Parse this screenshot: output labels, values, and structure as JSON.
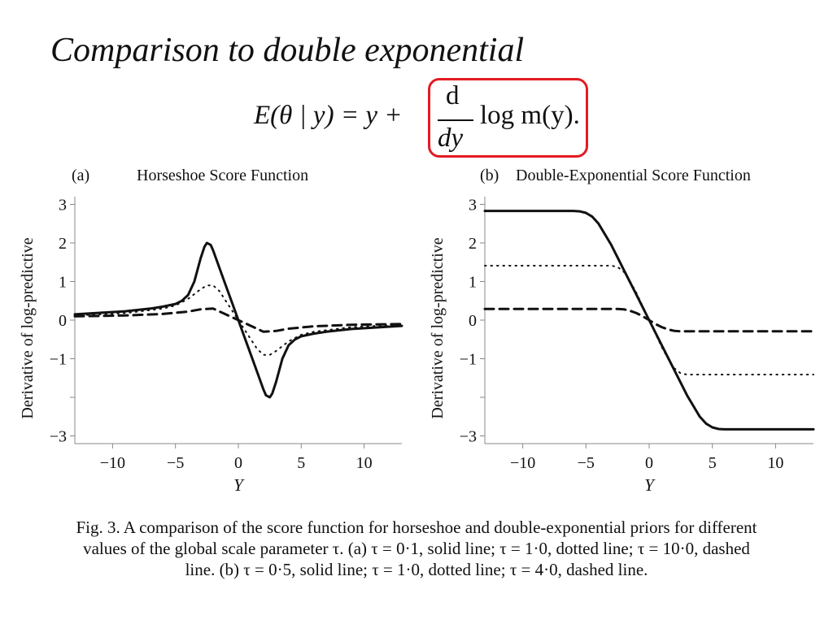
{
  "slide_title": "Comparison to double exponential",
  "equation": {
    "lhs": "E(θ | y) = y +",
    "numerator": "d",
    "denominator": "dy",
    "rhs": "log m(y).",
    "highlight_color": "#e31b23"
  },
  "caption": {
    "line1": "Fig.  3.  A comparison of the score function for horseshoe and double-exponential priors for different",
    "line2": "values of the global scale parameter τ. (a) τ = 0·1, solid line; τ = 1·0, dotted line; τ = 10·0, dashed",
    "line3": "line. (b) τ = 0·5, solid line; τ = 1·0, dotted line; τ = 4·0, dashed line."
  },
  "chart_data": [
    {
      "type": "line",
      "panel_label": "(a)",
      "title": "Horseshoe Score Function",
      "xlabel": "Y",
      "ylabel": "Derivative of log-predictive",
      "xlim": [
        -13,
        13
      ],
      "ylim": [
        -3.2,
        3.2
      ],
      "xticks": [
        -10,
        -5,
        0,
        5,
        10
      ],
      "xtick_labels": [
        "−10",
        "−5",
        "0",
        "5",
        "10"
      ],
      "yticks": [
        -3,
        -2,
        -1,
        0,
        1,
        2,
        3
      ],
      "ytick_labels": [
        "−3",
        "",
        "−1",
        "0",
        "1",
        "2",
        "3"
      ],
      "grid": false,
      "series": [
        {
          "style": "solid",
          "x": [
            -13,
            -11,
            -9,
            -7,
            -6,
            -5,
            -4.5,
            -4,
            -3.5,
            -3,
            -2.7,
            -2.5,
            -2.2,
            -2,
            -1.5,
            -1,
            -0.5,
            0,
            0.5,
            1,
            1.5,
            2,
            2.2,
            2.5,
            2.7,
            3,
            3.5,
            4,
            4.5,
            5,
            6,
            7,
            9,
            11,
            13
          ],
          "y": [
            0.15,
            0.19,
            0.23,
            0.3,
            0.35,
            0.42,
            0.5,
            0.65,
            1.0,
            1.6,
            1.9,
            2.0,
            1.95,
            1.8,
            1.35,
            0.9,
            0.45,
            0.0,
            -0.45,
            -0.9,
            -1.35,
            -1.8,
            -1.95,
            -2.0,
            -1.9,
            -1.6,
            -1.0,
            -0.65,
            -0.5,
            -0.42,
            -0.35,
            -0.3,
            -0.23,
            -0.19,
            -0.15
          ]
        },
        {
          "style": "dotted",
          "x": [
            -13,
            -9,
            -6,
            -5,
            -4,
            -3,
            -2.5,
            -2,
            -1.5,
            -1,
            -0.5,
            0,
            0.5,
            1,
            1.5,
            2,
            2.5,
            3,
            4,
            5,
            6,
            9,
            13
          ],
          "y": [
            0.12,
            0.18,
            0.3,
            0.38,
            0.55,
            0.8,
            0.9,
            0.9,
            0.75,
            0.5,
            0.25,
            0.0,
            -0.25,
            -0.5,
            -0.75,
            -0.9,
            -0.9,
            -0.8,
            -0.55,
            -0.38,
            -0.3,
            -0.18,
            -0.12
          ]
        },
        {
          "style": "dashed",
          "x": [
            -13,
            -9,
            -6,
            -4,
            -3,
            -2,
            -1,
            0,
            1,
            2,
            3,
            4,
            6,
            9,
            13
          ],
          "y": [
            0.1,
            0.12,
            0.16,
            0.22,
            0.28,
            0.3,
            0.15,
            0.0,
            -0.15,
            -0.3,
            -0.28,
            -0.22,
            -0.16,
            -0.12,
            -0.1
          ]
        }
      ]
    },
    {
      "type": "line",
      "panel_label": "(b)",
      "title": "Double-Exponential Score Function",
      "xlabel": "Y",
      "ylabel": "Derivative of log-predictive",
      "xlim": [
        -13,
        13
      ],
      "ylim": [
        -3.2,
        3.2
      ],
      "xticks": [
        -10,
        -5,
        0,
        5,
        10
      ],
      "xtick_labels": [
        "−10",
        "−5",
        "0",
        "5",
        "10"
      ],
      "yticks": [
        -3,
        -2,
        -1,
        0,
        1,
        2,
        3
      ],
      "ytick_labels": [
        "−3",
        "",
        "−1",
        "0",
        "1",
        "2",
        "3"
      ],
      "grid": false,
      "series": [
        {
          "style": "solid",
          "x": [
            -13,
            -6,
            -5.5,
            -5,
            -4.5,
            -4,
            -3,
            -2,
            -1,
            0,
            1,
            2,
            3,
            4,
            4.5,
            5,
            5.5,
            6,
            13
          ],
          "y": [
            2.83,
            2.83,
            2.82,
            2.78,
            2.68,
            2.5,
            1.95,
            1.3,
            0.65,
            0.0,
            -0.65,
            -1.3,
            -1.95,
            -2.5,
            -2.68,
            -2.78,
            -2.82,
            -2.83,
            -2.83
          ]
        },
        {
          "style": "dotted",
          "x": [
            -13,
            -3,
            -2.5,
            -2,
            -1.5,
            -1,
            -0.5,
            0,
            0.5,
            1,
            1.5,
            2,
            2.5,
            3,
            13
          ],
          "y": [
            1.41,
            1.41,
            1.38,
            1.25,
            1.0,
            0.7,
            0.35,
            0.0,
            -0.35,
            -0.7,
            -1.0,
            -1.25,
            -1.38,
            -1.41,
            -1.41
          ]
        },
        {
          "style": "dashed",
          "x": [
            -13,
            -2.5,
            -2,
            -1.5,
            -1,
            -0.5,
            0,
            0.5,
            1,
            1.5,
            2,
            2.5,
            13
          ],
          "y": [
            0.29,
            0.29,
            0.28,
            0.24,
            0.18,
            0.1,
            0.0,
            -0.1,
            -0.18,
            -0.24,
            -0.28,
            -0.29,
            -0.29
          ]
        }
      ]
    }
  ]
}
